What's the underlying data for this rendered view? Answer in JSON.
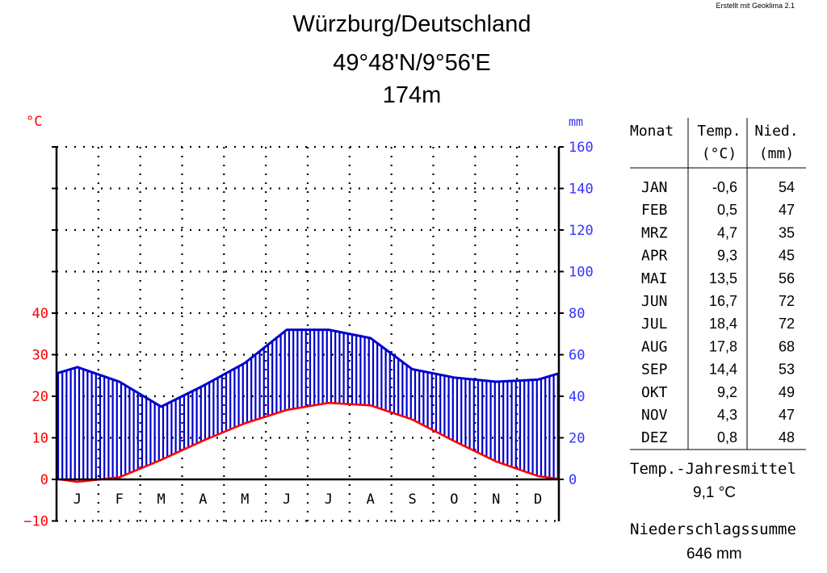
{
  "credit": "Erstellt mit Geoklima 2.1",
  "title": {
    "place": "Würzburg/Deutschland",
    "coords": "49°48'N/9°56'E",
    "elevation": "174m"
  },
  "colors": {
    "temperature": "#ff0000",
    "precipitation": "#0000cc",
    "precip_axis": "#3333ff",
    "temp_axis": "#ff0000"
  },
  "table": {
    "headers": {
      "month": "Monat",
      "temp_line1": "Temp.",
      "temp_line2": "(°C)",
      "precip_line1": "Nied.",
      "precip_line2": "(mm)"
    },
    "rows": [
      {
        "month": "JAN",
        "temp": "-0,6",
        "precip": "54"
      },
      {
        "month": "FEB",
        "temp": "0,5",
        "precip": "47"
      },
      {
        "month": "MRZ",
        "temp": "4,7",
        "precip": "35"
      },
      {
        "month": "APR",
        "temp": "9,3",
        "precip": "45"
      },
      {
        "month": "MAI",
        "temp": "13,5",
        "precip": "56"
      },
      {
        "month": "JUN",
        "temp": "16,7",
        "precip": "72"
      },
      {
        "month": "JUL",
        "temp": "18,4",
        "precip": "72"
      },
      {
        "month": "AUG",
        "temp": "17,8",
        "precip": "68"
      },
      {
        "month": "SEP",
        "temp": "14,4",
        "precip": "53"
      },
      {
        "month": "OKT",
        "temp": "9,2",
        "precip": "49"
      },
      {
        "month": "NOV",
        "temp": "4,3",
        "precip": "47"
      },
      {
        "month": "DEZ",
        "temp": "0,8",
        "precip": "48"
      }
    ]
  },
  "summary": {
    "temp_label": "Temp.-Jahresmittel",
    "temp_value": "9,1 °C",
    "precip_label": "Niederschlagssumme",
    "precip_value": "646 mm"
  },
  "chart_data": {
    "type": "line",
    "categories": [
      "J",
      "F",
      "M",
      "A",
      "M",
      "J",
      "J",
      "A",
      "S",
      "O",
      "N",
      "D"
    ],
    "series": [
      {
        "name": "Temp.",
        "unit": "°C",
        "axis": "left",
        "values": [
          -0.6,
          0.5,
          4.7,
          9.3,
          13.5,
          16.7,
          18.4,
          17.8,
          14.4,
          9.2,
          4.3,
          0.8
        ]
      },
      {
        "name": "Nied.",
        "unit": "mm",
        "axis": "right",
        "values": [
          54,
          47,
          35,
          45,
          56,
          72,
          72,
          68,
          53,
          49,
          47,
          48
        ]
      }
    ],
    "y_left": {
      "label": "°C",
      "ticks": [
        -10,
        0,
        10,
        20,
        30,
        40
      ],
      "range": [
        -10,
        80
      ]
    },
    "y_right": {
      "label": "mm",
      "ticks": [
        0,
        20,
        40,
        60,
        80,
        100,
        120,
        140,
        160
      ],
      "range": [
        0,
        160
      ]
    },
    "grid": true
  }
}
